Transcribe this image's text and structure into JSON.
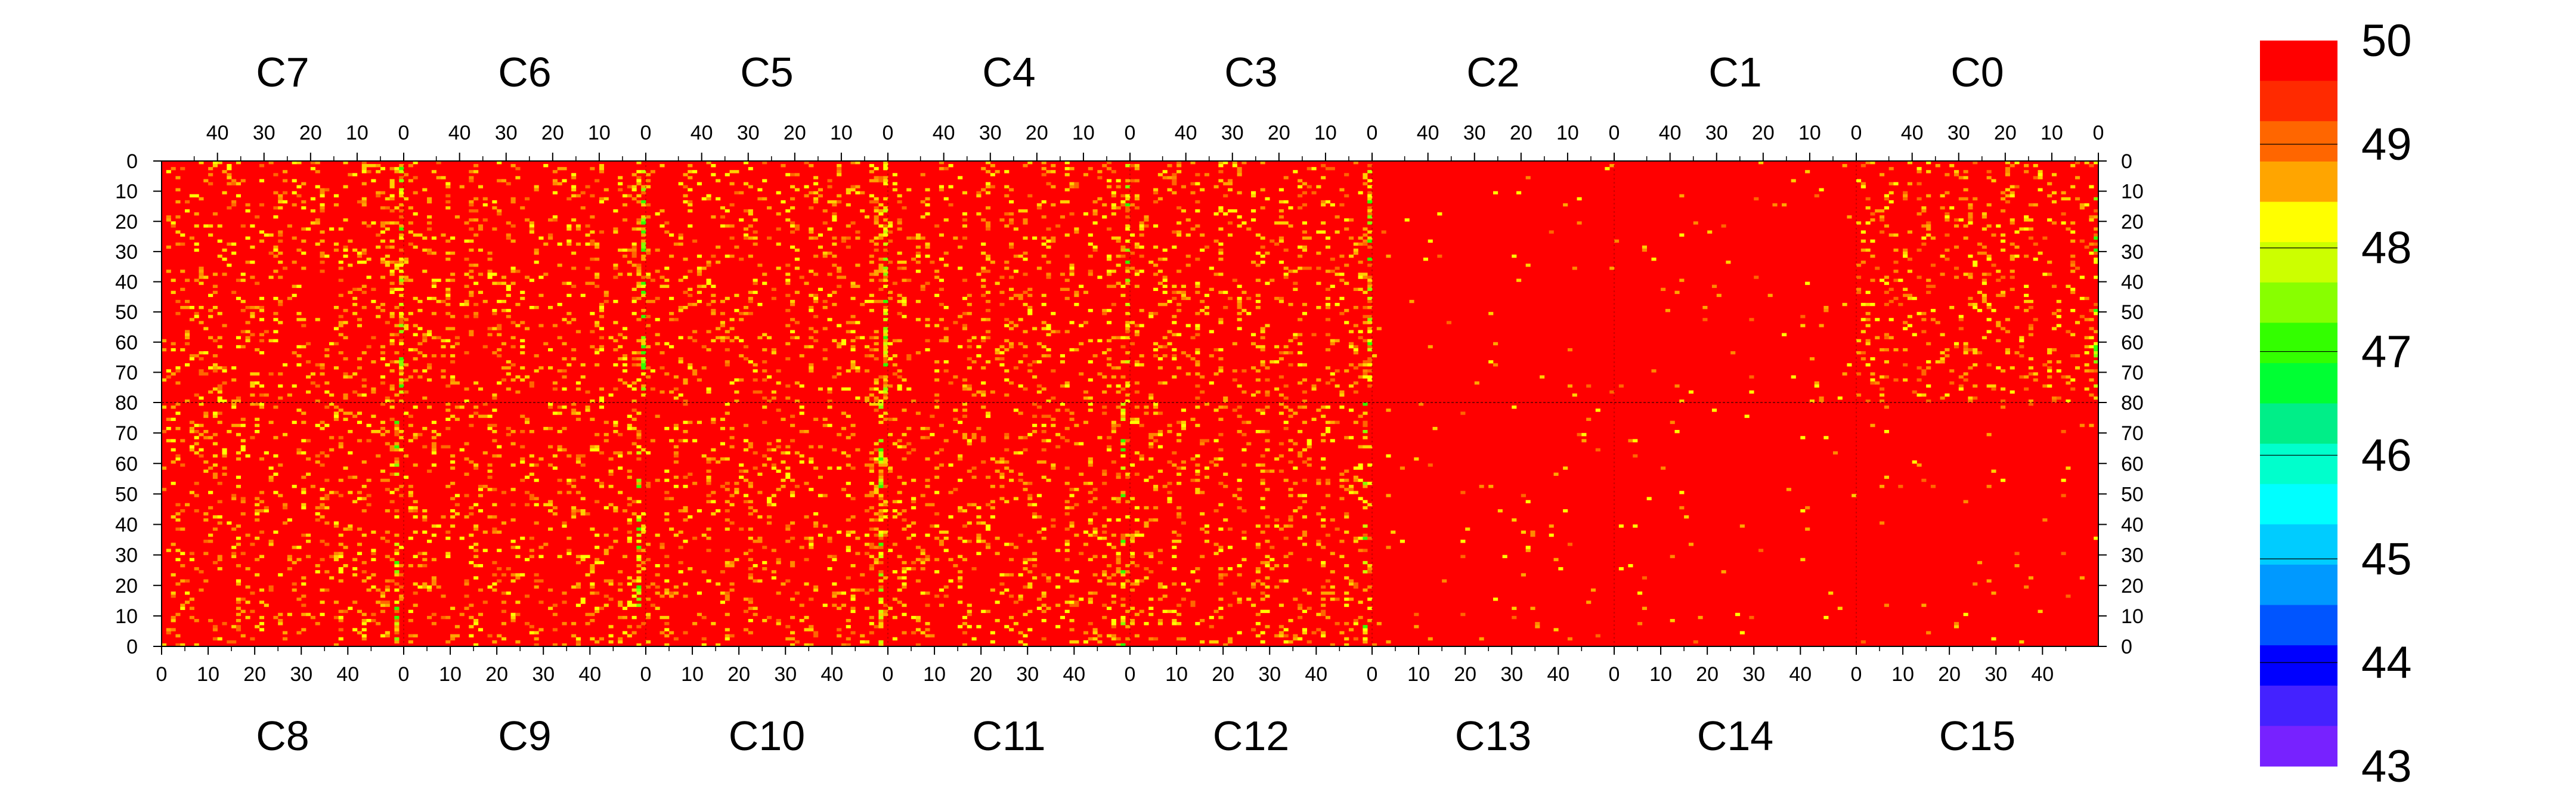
{
  "chart_data": {
    "type": "heatmap",
    "title": "",
    "top_chip_labels": [
      "C7",
      "C6",
      "C5",
      "C4",
      "C3",
      "C2",
      "C1",
      "C0"
    ],
    "bottom_chip_labels": [
      "C8",
      "C9",
      "C10",
      "C11",
      "C12",
      "C13",
      "C14",
      "C15"
    ],
    "top_x_tick_labels": [
      "40",
      "30",
      "20",
      "10",
      "0"
    ],
    "bottom_x_tick_labels": [
      "0",
      "10",
      "20",
      "30",
      "40"
    ],
    "y_tick_labels_top_half": [
      "0",
      "10",
      "20",
      "30",
      "40",
      "50",
      "60",
      "70",
      "80"
    ],
    "y_tick_labels_bottom_half": [
      "70",
      "60",
      "50",
      "40",
      "30",
      "20",
      "10",
      "0"
    ],
    "columns_per_chip": 52,
    "rows_per_half": 80,
    "zlim": [
      43,
      50
    ],
    "colorbar_labels": [
      "50",
      "49",
      "48",
      "47",
      "46",
      "45",
      "44",
      "43"
    ],
    "colorbar_colors": [
      "#ff0000",
      "#ff2a00",
      "#ff6600",
      "#ffa500",
      "#ffff00",
      "#ccff00",
      "#88ff00",
      "#33ff00",
      "#00ff33",
      "#00ee88",
      "#00ffcc",
      "#00ffff",
      "#00ccff",
      "#0099ff",
      "#0055ff",
      "#0000ff",
      "#4422ff",
      "#7722ff"
    ],
    "dominant_value": 50,
    "high_noise_columns": [
      {
        "chip": "C7",
        "column": 0,
        "level": 0.55
      },
      {
        "chip": "C6",
        "column": 0,
        "level": 0.45
      },
      {
        "chip": "C5",
        "column": 0,
        "level": 0.65
      },
      {
        "chip": "C4",
        "column": 0,
        "level": 0.45
      },
      {
        "chip": "C3",
        "column": 0,
        "level": 0.55
      },
      {
        "chip": "C0",
        "column": 0,
        "level": 0.35
      },
      {
        "chip": "C8",
        "column": 50,
        "level": 0.4
      },
      {
        "chip": "C9",
        "column": 50,
        "level": 0.35
      },
      {
        "chip": "C10",
        "column": 50,
        "level": 0.5
      },
      {
        "chip": "C11",
        "column": 50,
        "level": 0.35
      },
      {
        "chip": "C12",
        "column": 50,
        "level": 0.4
      }
    ],
    "quiet_chips": [
      "C2",
      "C1",
      "C13",
      "C14",
      "C15"
    ]
  }
}
